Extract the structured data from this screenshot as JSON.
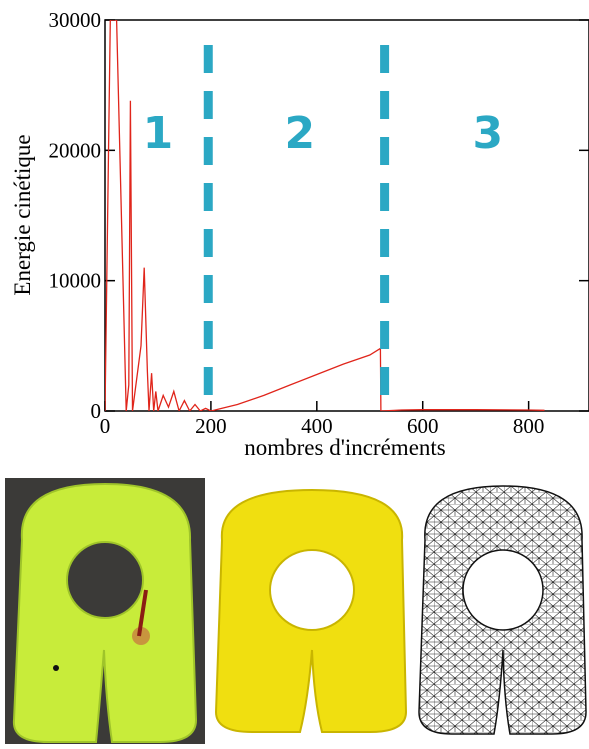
{
  "chart_data": {
    "type": "line",
    "x_label": "nombres d'incréments",
    "y_label": "Energie cinétique",
    "x": [
      0,
      10,
      22,
      40,
      45,
      48,
      52,
      68,
      74,
      80,
      83,
      88,
      92,
      96,
      100,
      110,
      120,
      130,
      140,
      150,
      160,
      170,
      180,
      190,
      200,
      250,
      300,
      350,
      400,
      450,
      500,
      520,
      521,
      560,
      600,
      700,
      800,
      830
    ],
    "values": [
      0,
      30000,
      30000,
      0,
      2000,
      23800,
      0,
      5000,
      11000,
      3000,
      0,
      2900,
      0,
      1500,
      0,
      1200,
      300,
      1500,
      0,
      800,
      0,
      500,
      0,
      200,
      0,
      500,
      1200,
      2000,
      2800,
      3600,
      4300,
      4800,
      0,
      80,
      100,
      100,
      80,
      50
    ],
    "color": "#e0251b",
    "xlim": [
      0,
      914
    ],
    "ylim": [
      0,
      30000
    ],
    "xticks": [
      0,
      200,
      400,
      600,
      800
    ],
    "yticks": [
      0,
      10000,
      20000,
      30000
    ],
    "separators": {
      "x": [
        195,
        528
      ],
      "color": "#2ba8c4"
    },
    "regions": [
      {
        "label": "1",
        "x": 100,
        "y": 21400
      },
      {
        "label": "2",
        "x": 368,
        "y": 21400
      },
      {
        "label": "3",
        "x": 723,
        "y": 21400
      }
    ]
  }
}
